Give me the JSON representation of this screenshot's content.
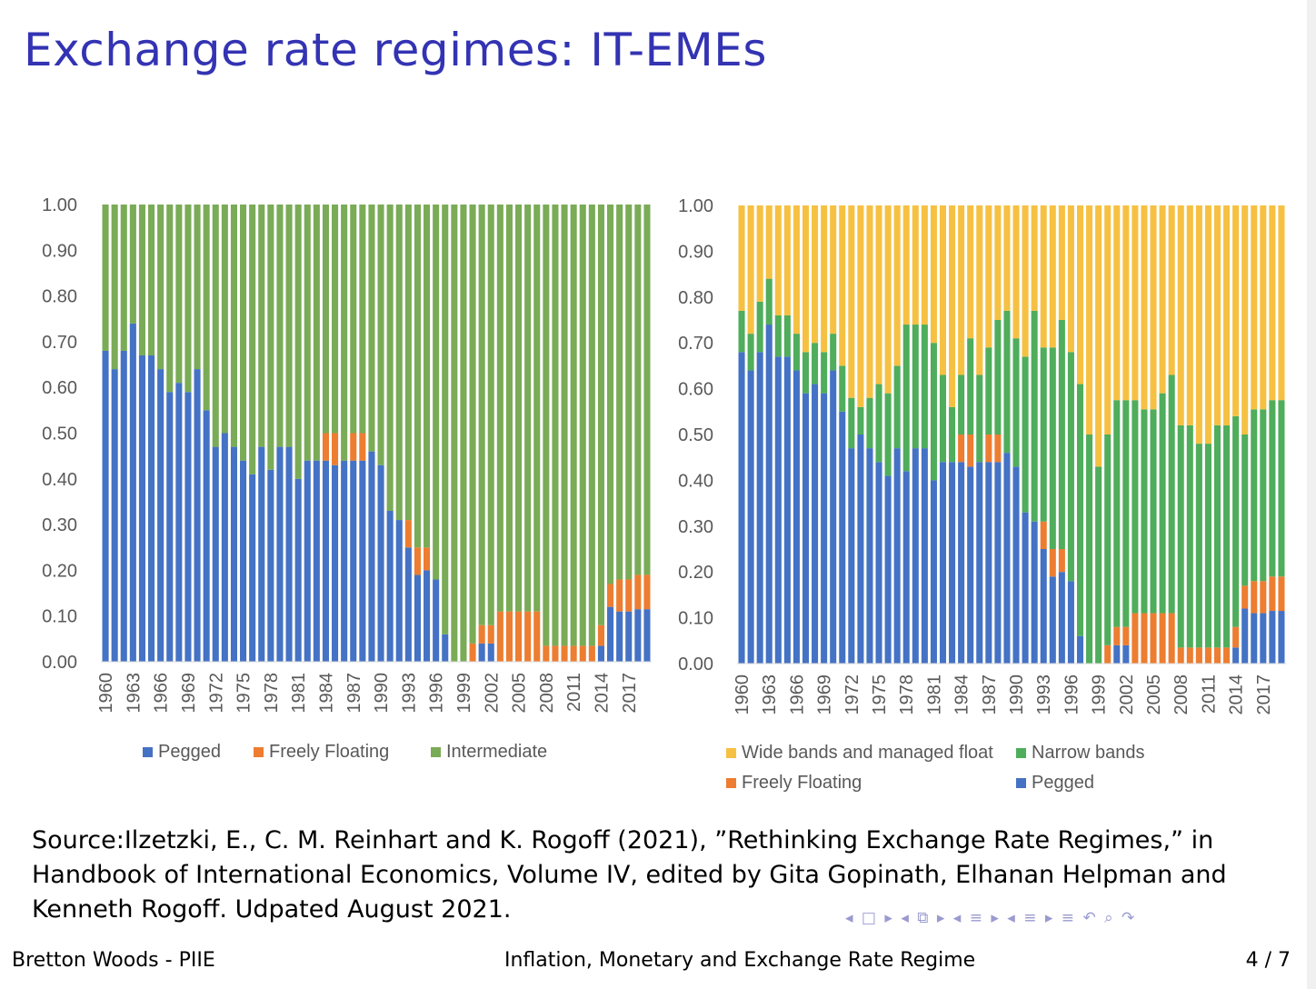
{
  "slide": {
    "title": "Exchange rate regimes: IT-EMEs",
    "source": "Source:Ilzetzki, E., C. M. Reinhart and K. Rogoff (2021), ”Rethinking Exchange Rate Regimes,” in Handbook of International Economics, Volume IV, edited by Gita Gopinath, Elhanan Helpman and Kenneth Rogoff. Udpated August 2021.",
    "nav_symbols": "◂ □ ▸ ◂ ⧉ ▸ ◂ ≡ ▸ ◂ ≡ ▸   ≡   ↶ ⌕ ↷",
    "footer": {
      "left": "Bretton Woods - PIIE",
      "center": "Inflation, Monetary and Exchange Rate Regime",
      "right": "4 / 7"
    }
  },
  "colors": {
    "pegged": "#4472c4",
    "floating": "#ed7d31",
    "intermediate": "#7aab57",
    "narrow": "#4fad5b",
    "wide": "#f6c142",
    "title": "#3333b3"
  },
  "chart_data": [
    {
      "type": "bar",
      "stacked": true,
      "title": "",
      "ylim": [
        0,
        1
      ],
      "yticks": [
        "0.00",
        "0.10",
        "0.20",
        "0.30",
        "0.40",
        "0.50",
        "0.60",
        "0.70",
        "0.80",
        "0.90",
        "1.00"
      ],
      "start_year": 1960,
      "xtick_labels": [
        "1960",
        "1963",
        "1966",
        "1969",
        "1972",
        "1975",
        "1978",
        "1981",
        "1984",
        "1987",
        "1990",
        "1993",
        "1996",
        "1999",
        "2002",
        "2005",
        "2008",
        "2011",
        "2014",
        "2017"
      ],
      "legend": [
        "Pegged",
        "Freely Floating",
        "Intermediate"
      ],
      "series": [
        {
          "name": "Pegged",
          "color_key": "pegged",
          "values": [
            0.68,
            0.64,
            0.68,
            0.74,
            0.67,
            0.67,
            0.64,
            0.59,
            0.61,
            0.59,
            0.64,
            0.55,
            0.47,
            0.5,
            0.47,
            0.44,
            0.41,
            0.47,
            0.42,
            0.47,
            0.47,
            0.4,
            0.44,
            0.44,
            0.44,
            0.43,
            0.44,
            0.44,
            0.44,
            0.46,
            0.43,
            0.33,
            0.31,
            0.25,
            0.19,
            0.2,
            0.18,
            0.06,
            0,
            0,
            0,
            0.04,
            0.04,
            0,
            0,
            0,
            0,
            0,
            0,
            0,
            0,
            0,
            0,
            0,
            0.035,
            0.12,
            0.11,
            0.11,
            0.115,
            0.115
          ]
        },
        {
          "name": "Freely Floating",
          "color_key": "floating",
          "values": [
            0,
            0,
            0,
            0,
            0,
            0,
            0,
            0,
            0,
            0,
            0,
            0,
            0,
            0,
            0,
            0,
            0,
            0,
            0,
            0,
            0,
            0,
            0,
            0,
            0.06,
            0.07,
            0,
            0.06,
            0.06,
            0,
            0,
            0,
            0,
            0.06,
            0.06,
            0.05,
            0,
            0,
            0,
            0,
            0.04,
            0.04,
            0.04,
            0.11,
            0.11,
            0.11,
            0.11,
            0.11,
            0.035,
            0.035,
            0.035,
            0.035,
            0.035,
            0.035,
            0.045,
            0.05,
            0.07,
            0.07,
            0.075,
            0.075
          ]
        },
        {
          "name": "Intermediate",
          "color_key": "intermediate",
          "remainder": true
        }
      ]
    },
    {
      "type": "bar",
      "stacked": true,
      "title": "",
      "ylim": [
        0,
        1
      ],
      "yticks": [
        "0.00",
        "0.10",
        "0.20",
        "0.30",
        "0.40",
        "0.50",
        "0.60",
        "0.70",
        "0.80",
        "0.90",
        "1.00"
      ],
      "start_year": 1960,
      "xtick_labels": [
        "1960",
        "1963",
        "1966",
        "1969",
        "1972",
        "1975",
        "1978",
        "1981",
        "1984",
        "1987",
        "1990",
        "1993",
        "1996",
        "1999",
        "2002",
        "2005",
        "2008",
        "2011",
        "2014",
        "2017"
      ],
      "legend": [
        "Wide bands and managed float",
        "Narrow bands",
        "Freely Floating",
        "Pegged"
      ],
      "series": [
        {
          "name": "Pegged",
          "color_key": "pegged",
          "same_as": "Pegged"
        },
        {
          "name": "Freely Floating",
          "color_key": "floating",
          "same_as": "Freely Floating"
        },
        {
          "name": "Narrow bands",
          "color_key": "narrow",
          "cumulative_top": [
            0.77,
            0.72,
            0.79,
            0.84,
            0.76,
            0.76,
            0.72,
            0.68,
            0.7,
            0.68,
            0.72,
            0.65,
            0.58,
            0.56,
            0.58,
            0.61,
            0.59,
            0.65,
            0.74,
            0.74,
            0.74,
            0.7,
            0.63,
            0.56,
            0.63,
            0.71,
            0.63,
            0.69,
            0.75,
            0.77,
            0.71,
            0.67,
            0.77,
            0.69,
            0.69,
            0.75,
            0.68,
            0.61,
            0.5,
            0.43,
            0.5,
            0.575,
            0.575,
            0.575,
            0.555,
            0.555,
            0.59,
            0.63,
            0.52,
            0.52,
            0.48,
            0.48,
            0.52,
            0.52,
            0.54,
            0.5,
            0.555,
            0.555,
            0.575,
            0.575
          ]
        },
        {
          "name": "Wide bands and managed float",
          "color_key": "wide",
          "remainder": true
        }
      ]
    }
  ]
}
